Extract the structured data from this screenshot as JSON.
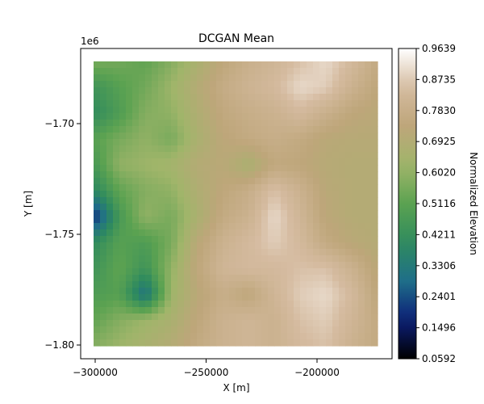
{
  "chart_data": {
    "type": "heatmap",
    "title": "DCGAN Mean",
    "xlabel": "X [m]",
    "ylabel": "Y [m]",
    "y_offset_label": "1e6",
    "xlim": [
      -300000,
      -170000
    ],
    "ylim": [
      -1.8,
      -1.673
    ],
    "x_ticks": [
      -300000,
      -250000,
      -200000
    ],
    "x_tick_labels": [
      "−300000",
      "−250000",
      "−200000"
    ],
    "y_ticks": [
      -1.8,
      -1.75,
      -1.7
    ],
    "y_tick_labels": [
      "−1.80",
      "−1.75",
      "−1.70"
    ],
    "colorbar": {
      "label": "Normalized Elevation",
      "range": [
        0.0592,
        0.9639
      ],
      "ticks": [
        0.0592,
        0.1496,
        0.2401,
        0.3306,
        0.4211,
        0.5116,
        0.602,
        0.6925,
        0.783,
        0.8735,
        0.9639
      ],
      "tick_labels": [
        "0.0592",
        "0.1496",
        "0.2401",
        "0.3306",
        "0.4211",
        "0.5116",
        "0.6020",
        "0.6925",
        "0.7830",
        "0.8735",
        "0.9639"
      ],
      "colormap": "gist_earth",
      "colormap_stops": [
        "#000000",
        "#0c1f78",
        "#1f6e89",
        "#2f8b5e",
        "#5ba251",
        "#a0b56a",
        "#bea67a",
        "#d5bba0",
        "#ffffff"
      ]
    },
    "grid": false,
    "description_rows_top_to_bottom": [
      [
        0.56,
        0.55,
        0.52,
        0.58,
        0.66,
        0.74,
        0.79,
        0.82,
        0.86,
        0.9,
        0.84,
        0.76
      ],
      [
        0.44,
        0.5,
        0.55,
        0.62,
        0.7,
        0.77,
        0.81,
        0.84,
        0.9,
        0.88,
        0.8,
        0.74
      ],
      [
        0.4,
        0.48,
        0.58,
        0.6,
        0.68,
        0.75,
        0.78,
        0.8,
        0.84,
        0.79,
        0.74,
        0.72
      ],
      [
        0.5,
        0.56,
        0.6,
        0.56,
        0.66,
        0.73,
        0.76,
        0.78,
        0.76,
        0.72,
        0.71,
        0.71
      ],
      [
        0.46,
        0.6,
        0.62,
        0.64,
        0.7,
        0.72,
        0.66,
        0.75,
        0.74,
        0.71,
        0.7,
        0.7
      ],
      [
        0.38,
        0.52,
        0.58,
        0.6,
        0.68,
        0.74,
        0.78,
        0.86,
        0.8,
        0.72,
        0.7,
        0.7
      ],
      [
        0.18,
        0.46,
        0.6,
        0.56,
        0.66,
        0.76,
        0.8,
        0.9,
        0.82,
        0.73,
        0.7,
        0.7
      ],
      [
        0.4,
        0.5,
        0.48,
        0.56,
        0.72,
        0.8,
        0.84,
        0.88,
        0.84,
        0.76,
        0.72,
        0.7
      ],
      [
        0.44,
        0.52,
        0.44,
        0.6,
        0.74,
        0.82,
        0.84,
        0.84,
        0.86,
        0.86,
        0.8,
        0.72
      ],
      [
        0.48,
        0.5,
        0.3,
        0.62,
        0.72,
        0.78,
        0.74,
        0.82,
        0.88,
        0.9,
        0.84,
        0.74
      ],
      [
        0.52,
        0.58,
        0.62,
        0.66,
        0.74,
        0.8,
        0.82,
        0.8,
        0.86,
        0.88,
        0.82,
        0.76
      ],
      [
        0.58,
        0.62,
        0.66,
        0.7,
        0.76,
        0.8,
        0.82,
        0.8,
        0.84,
        0.86,
        0.8,
        0.76
      ]
    ]
  }
}
